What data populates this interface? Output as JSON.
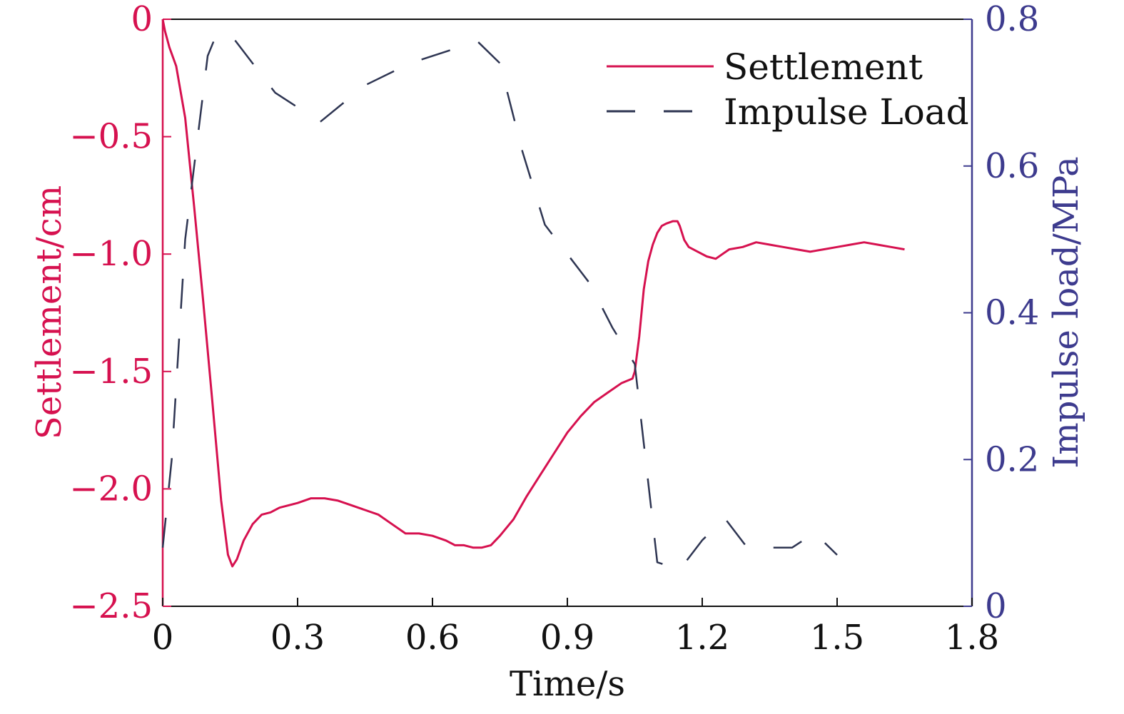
{
  "colors": {
    "settlement": "#d6114f",
    "impulse": "#2e3552",
    "left_axis": "#d6114f",
    "right_axis": "#3d3b8e",
    "frame": "#111111"
  },
  "legend": {
    "placement": "top-right",
    "settlement_label": "Settlement",
    "impulse_label": "Impulse Load"
  },
  "chart_data": {
    "type": "line",
    "title": "",
    "xlabel": "Time/s",
    "ylabel_left": "Settlement/cm",
    "ylabel_right": "Impulse load/MPa",
    "xlim": [
      0,
      1.8
    ],
    "ylim_left": [
      -2.5,
      0
    ],
    "ylim_right": [
      0,
      0.8
    ],
    "x_ticks": [
      "0",
      "0.3",
      "0.6",
      "0.9",
      "1.2",
      "1.5",
      "1.8"
    ],
    "y_left_ticks": [
      "0",
      "−0.5",
      "−1.0",
      "−1.5",
      "−2.0",
      "−2.5"
    ],
    "y_right_ticks": [
      "0.8",
      "0.6",
      "0.4",
      "0.2",
      "0"
    ],
    "grid": false,
    "series": [
      {
        "name": "Settlement",
        "axis": "left",
        "style": "solid",
        "x": [
          0,
          0.005,
          0.015,
          0.03,
          0.05,
          0.07,
          0.09,
          0.11,
          0.13,
          0.145,
          0.155,
          0.165,
          0.18,
          0.2,
          0.22,
          0.24,
          0.26,
          0.28,
          0.3,
          0.33,
          0.36,
          0.39,
          0.42,
          0.45,
          0.48,
          0.51,
          0.54,
          0.57,
          0.6,
          0.63,
          0.65,
          0.67,
          0.69,
          0.71,
          0.73,
          0.75,
          0.78,
          0.81,
          0.84,
          0.87,
          0.9,
          0.93,
          0.96,
          0.99,
          1.02,
          1.045,
          1.05,
          1.06,
          1.07,
          1.08,
          1.09,
          1.1,
          1.11,
          1.12,
          1.135,
          1.145,
          1.15,
          1.16,
          1.17,
          1.19,
          1.21,
          1.23,
          1.26,
          1.29,
          1.32,
          1.35,
          1.38,
          1.41,
          1.44,
          1.47,
          1.5,
          1.53,
          1.56,
          1.59,
          1.62,
          1.65
        ],
        "y": [
          0,
          -0.05,
          -0.12,
          -0.2,
          -0.42,
          -0.8,
          -1.2,
          -1.62,
          -2.05,
          -2.28,
          -2.33,
          -2.3,
          -2.22,
          -2.15,
          -2.11,
          -2.1,
          -2.08,
          -2.07,
          -2.06,
          -2.04,
          -2.04,
          -2.05,
          -2.07,
          -2.09,
          -2.11,
          -2.15,
          -2.19,
          -2.19,
          -2.2,
          -2.22,
          -2.24,
          -2.24,
          -2.25,
          -2.25,
          -2.24,
          -2.2,
          -2.13,
          -2.03,
          -1.94,
          -1.85,
          -1.76,
          -1.69,
          -1.63,
          -1.59,
          -1.55,
          -1.53,
          -1.5,
          -1.35,
          -1.15,
          -1.03,
          -0.96,
          -0.91,
          -0.88,
          -0.87,
          -0.86,
          -0.86,
          -0.88,
          -0.94,
          -0.97,
          -0.99,
          -1.01,
          -1.02,
          -0.98,
          -0.97,
          -0.95,
          -0.96,
          -0.97,
          -0.98,
          -0.99,
          -0.98,
          -0.97,
          -0.96,
          -0.95,
          -0.96,
          -0.97,
          -0.98
        ]
      },
      {
        "name": "Impulse Load",
        "axis": "right",
        "style": "dashed",
        "x": [
          0,
          0.02,
          0.05,
          0.08,
          0.1,
          0.12,
          0.15,
          0.2,
          0.25,
          0.35,
          0.45,
          0.55,
          0.65,
          0.7,
          0.75,
          0.8,
          0.85,
          0.95,
          1.0,
          1.05,
          1.1,
          1.15,
          1.2,
          1.25,
          1.3,
          1.35,
          1.4,
          1.45,
          1.5
        ],
        "y": [
          0.08,
          0.2,
          0.5,
          0.65,
          0.75,
          0.78,
          0.78,
          0.74,
          0.7,
          0.66,
          0.71,
          0.74,
          0.76,
          0.77,
          0.74,
          0.62,
          0.52,
          0.44,
          0.38,
          0.33,
          0.06,
          0.05,
          0.09,
          0.12,
          0.08,
          0.08,
          0.08,
          0.1,
          0.07
        ]
      }
    ]
  }
}
